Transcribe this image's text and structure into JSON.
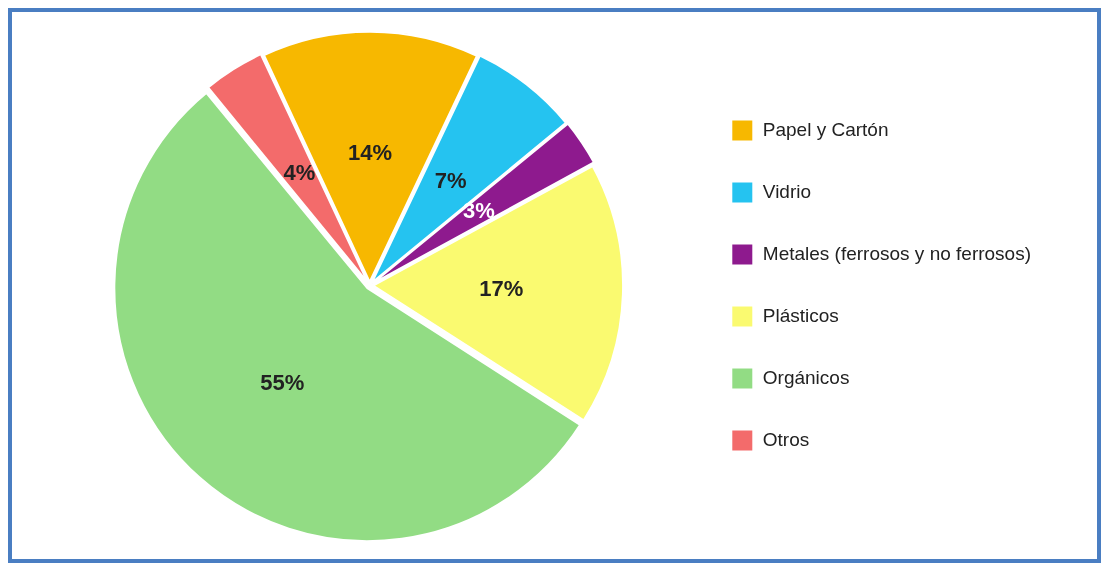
{
  "chart_data": {
    "type": "pie",
    "categories": [
      "Papel y Cartón",
      "Vidrio",
      "Metales (ferrosos y no ferrosos)",
      "Plásticos",
      "Orgánicos",
      "Otros"
    ],
    "values": [
      14,
      7,
      3,
      17,
      55,
      4
    ],
    "value_labels": [
      "14%",
      "7%",
      "3%",
      "17%",
      "55%",
      "4%"
    ],
    "colors": [
      "#f7b800",
      "#25c3f0",
      "#8e1a8e",
      "#fafa70",
      "#92dc84",
      "#f36b6b"
    ],
    "legend": "right"
  }
}
